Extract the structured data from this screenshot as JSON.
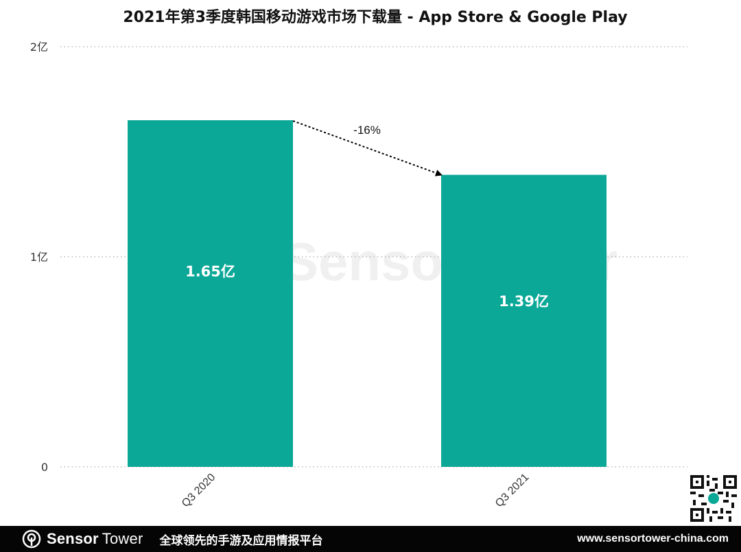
{
  "chart_data": {
    "type": "bar",
    "title": "2021年第3季度韩国移动游戏市场下载量 - App Store & Google Play",
    "categories": [
      "Q3 2020",
      "Q3 2021"
    ],
    "values": [
      1.65,
      1.39
    ],
    "value_labels": [
      "1.65亿",
      "1.39亿"
    ],
    "unit": "亿",
    "ylim": [
      0,
      2
    ],
    "yticks": [
      0,
      1,
      2
    ],
    "ytick_labels": [
      "0",
      "1亿",
      "2亿"
    ],
    "xlabel": "",
    "ylabel": "",
    "grid": "horizontal-dotted",
    "bar_color": "#0BA898",
    "annotation": {
      "text": "-16%",
      "from": "Q3 2020",
      "to": "Q3 2021",
      "style": "dotted-arrow"
    },
    "watermark": "SensorTower"
  },
  "footer": {
    "brand_sensor": "Sensor",
    "brand_tower": "Tower",
    "tagline": "全球领先的手游及应用情报平台",
    "website": "www.sensortower-china.com"
  }
}
